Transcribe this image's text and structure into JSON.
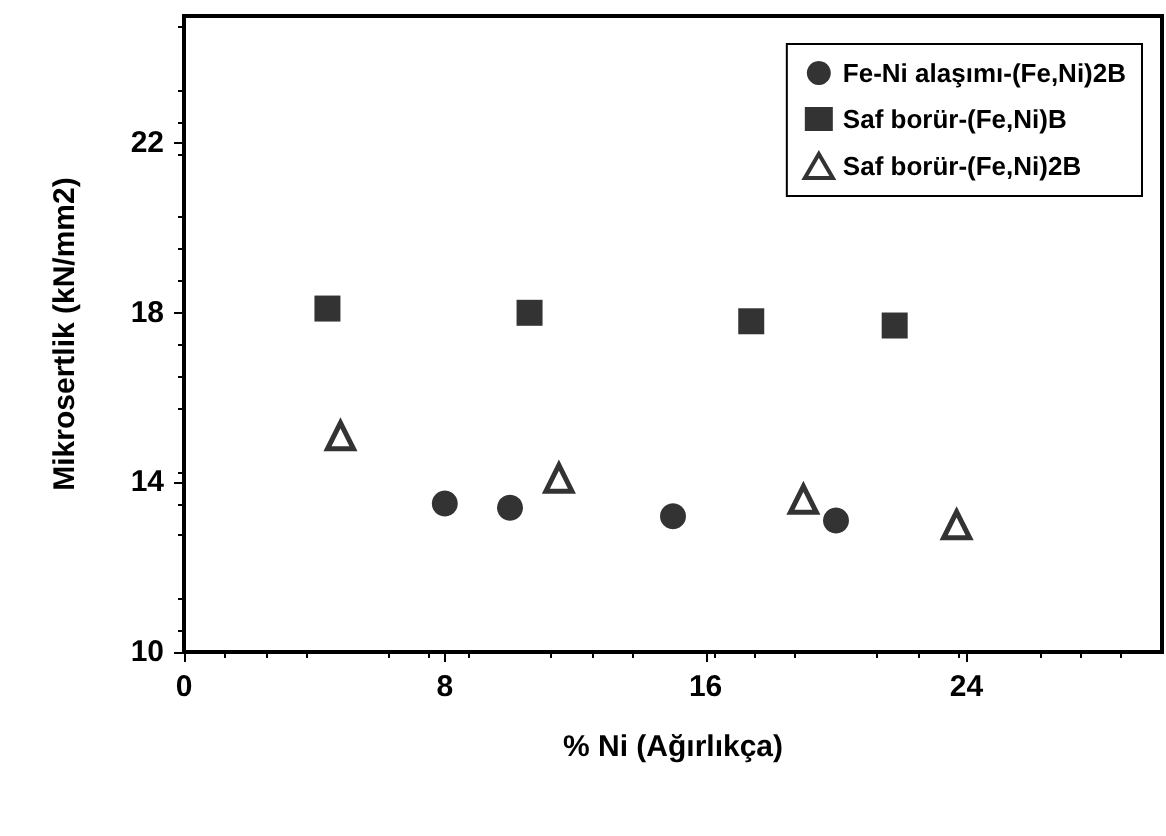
{
  "chart_data": {
    "type": "scatter",
    "xlabel": "% Ni (Ağırlıkça)",
    "ylabel": "Mikrosertlik (kN/mm2)",
    "xlim": [
      0,
      30
    ],
    "xticks": [
      0,
      8,
      16,
      24
    ],
    "ylim": [
      10,
      25
    ],
    "yticks": [
      10,
      14,
      18,
      22
    ],
    "grid": false,
    "legend": "top right",
    "series": [
      {
        "name": "Fe-Ni alaşımı-(Fe,Ni)2B",
        "color": "#000000",
        "marker": "circle",
        "x": [
          8.0,
          10.0,
          15.0,
          20.0
        ],
        "values": [
          13.5,
          13.4,
          13.2,
          13.1
        ]
      },
      {
        "name": "Saf borür-(Fe,Ni)B",
        "color": "#000000",
        "marker": "square",
        "x": [
          4.4,
          10.6,
          17.4,
          21.8
        ],
        "values": [
          18.1,
          18.0,
          17.8,
          17.7
        ]
      },
      {
        "name": "Saf borür-(Fe,Ni)2B",
        "color": "#000000",
        "marker": "triangle",
        "x": [
          4.8,
          11.5,
          19.0,
          23.7
        ],
        "values": [
          15.1,
          14.1,
          13.6,
          13.0
        ]
      }
    ]
  }
}
